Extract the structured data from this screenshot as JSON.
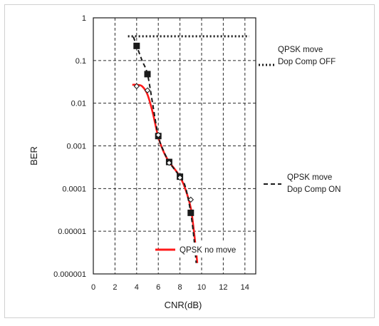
{
  "chart_data": {
    "type": "line",
    "title": "",
    "xlabel": "CNR(dB)",
    "ylabel": "BER",
    "xlim": [
      0,
      15
    ],
    "ylim": [
      1e-06,
      1
    ],
    "y_scale": "log",
    "grid": true,
    "grid_style": "dashed",
    "x_ticks": [
      0,
      2,
      4,
      6,
      8,
      10,
      12,
      14
    ],
    "x_tick_labels": [
      "0",
      "2",
      "4",
      "6",
      "8",
      "10",
      "12",
      "14"
    ],
    "y_ticks": [
      1e-06,
      1e-05,
      0.0001,
      0.001,
      0.01,
      0.1,
      1
    ],
    "y_tick_labels": [
      "0.000001",
      "0.00001",
      "0.0001",
      "0.001",
      "0.01",
      "0.1",
      "1"
    ],
    "series": [
      {
        "name": "QPSK move Dop Comp OFF",
        "legend_lines": [
          "QPSK move",
          "Dop Comp OFF"
        ],
        "style": "dotted",
        "color": "#1a1a1a",
        "marker": "none",
        "x": [
          3.2,
          14.4
        ],
        "y": [
          0.37,
          0.37
        ]
      },
      {
        "name": "QPSK move Dop Comp ON",
        "legend_lines": [
          "QPSK move",
          "Dop Comp ON"
        ],
        "style": "dashed",
        "color": "#1a1a1a",
        "marker": "square",
        "markers": {
          "x": [
            4,
            5,
            6,
            7,
            8,
            9
          ],
          "y": [
            0.22,
            0.048,
            0.0017,
            0.00042,
            0.00019,
            2.7e-05
          ]
        },
        "curve": {
          "x": [
            3.7,
            4,
            4.5,
            5,
            5.5,
            6,
            6.5,
            7,
            7.5,
            8,
            8.5,
            9,
            9.3,
            9.5
          ],
          "y": [
            0.36,
            0.22,
            0.1,
            0.048,
            0.009,
            0.0017,
            0.00075,
            0.00042,
            0.00028,
            0.00019,
            0.00011,
            2.7e-05,
            6.5e-06,
            1.8e-06
          ]
        }
      },
      {
        "name": "QPSK no move",
        "legend_lines": [
          "QPSK no move"
        ],
        "style": "solid",
        "color": "#ff1a1a",
        "marker": "open-diamond",
        "markers": {
          "x": [
            4,
            5,
            6,
            7,
            8,
            9
          ],
          "y": [
            0.025,
            0.02,
            0.0018,
            0.0004,
            0.00018,
            5.5e-05
          ]
        },
        "curve": {
          "x": [
            3.6,
            4,
            4.5,
            5,
            5.5,
            6,
            6.5,
            7,
            7.5,
            8,
            8.5,
            9,
            9.3,
            9.6
          ],
          "y": [
            0.027,
            0.027,
            0.025,
            0.016,
            0.0058,
            0.0016,
            0.00072,
            0.00042,
            0.00029,
            0.00019,
            9.8e-05,
            3.5e-05,
            9.5e-06,
            1.8e-06
          ]
        }
      }
    ]
  },
  "colors": {
    "axis": "#1a1a1a",
    "grid": "#2a2a2a",
    "red_series": "#ff1a1a",
    "frame": "#d0d0d0"
  }
}
